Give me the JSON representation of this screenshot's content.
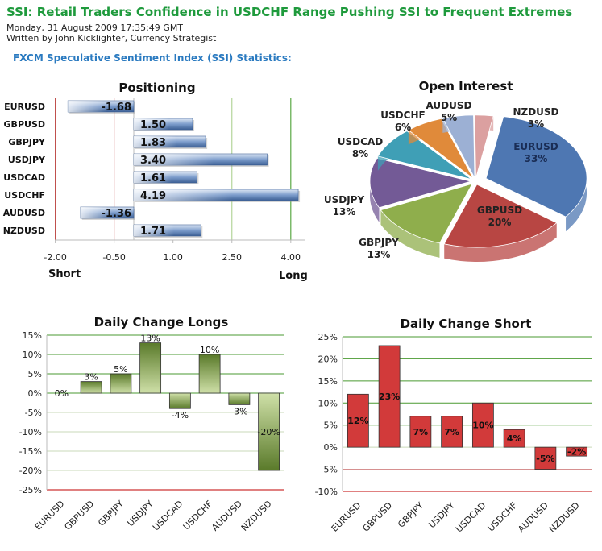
{
  "article": {
    "title": "SSI: Retail Traders Confidence in USDCHF Range Pushing SSI to Frequent Extremes",
    "date": "Monday, 31 August 2009 17:35:49 GMT",
    "author": "Written by John Kicklighter, Currency Strategist",
    "section": "FXCM Speculative Sentiment Index (SSI) Statistics:"
  },
  "chart_data": [
    {
      "type": "bar",
      "orientation": "horizontal",
      "title": "Positioning",
      "categories": [
        "EURUSD",
        "GBPUSD",
        "GBPJPY",
        "USDJPY",
        "USDCAD",
        "USDCHF",
        "AUDUSD",
        "NZDUSD"
      ],
      "values": [
        -1.68,
        1.5,
        1.83,
        3.4,
        1.61,
        4.19,
        -1.36,
        1.71
      ],
      "value_labels": [
        "-1.68",
        "1.50",
        "1.83",
        "3.40",
        "1.61",
        "4.19",
        "-1.36",
        "1.71"
      ],
      "xticks": [
        "-2.00",
        "-0.50",
        "1.00",
        "2.50",
        "4.00"
      ],
      "xlim": [
        -2.0,
        4.3
      ],
      "xlabel_left": "Short",
      "xlabel_right": "Long",
      "bar_color": "#4f74a8"
    },
    {
      "type": "pie",
      "title": "Open Interest",
      "categories": [
        "EURUSD",
        "GBPUSD",
        "GBPJPY",
        "USDJPY",
        "USDCAD",
        "USDCHF",
        "AUDUSD",
        "NZDUSD"
      ],
      "values": [
        33,
        20,
        13,
        13,
        8,
        6,
        5,
        3
      ],
      "value_labels": [
        "33%",
        "20%",
        "13%",
        "13%",
        "8%",
        "6%",
        "5%",
        "3%"
      ],
      "colors": [
        "#4e77b2",
        "#b84643",
        "#8fae4c",
        "#735a96",
        "#3f9fb6",
        "#e08a3a",
        "#9cb0d4",
        "#dba0a0"
      ]
    },
    {
      "type": "bar",
      "title": "Daily Change Longs",
      "categories": [
        "EURUSD",
        "GBPUSD",
        "GBPJPY",
        "USDJPY",
        "USDCAD",
        "USDCHF",
        "AUDUSD",
        "NZDUSD"
      ],
      "values": [
        0,
        3,
        5,
        13,
        -4,
        10,
        -3,
        -20
      ],
      "value_labels": [
        "0%",
        "3%",
        "5%",
        "13%",
        "-4%",
        "10%",
        "-3%",
        "-20%"
      ],
      "yticks": [
        "15%",
        "10%",
        "5%",
        "0%",
        "-5%",
        "-10%",
        "-15%",
        "-20%",
        "-25%"
      ],
      "ylim": [
        -25,
        15
      ],
      "bar_color": "#6f8f3a"
    },
    {
      "type": "bar",
      "title": "Daily Change Short",
      "categories": [
        "EURUSD",
        "GBPUSD",
        "GBPJPY",
        "USDJPY",
        "USDCAD",
        "USDCHF",
        "AUDUSD",
        "NZDUSD"
      ],
      "values": [
        12,
        23,
        7,
        7,
        10,
        4,
        -5,
        -2
      ],
      "value_labels": [
        "12%",
        "23%",
        "7%",
        "7%",
        "10%",
        "4%",
        "-5%",
        "-2%"
      ],
      "yticks": [
        "25%",
        "20%",
        "15%",
        "10%",
        "5%",
        "0%",
        "-5%",
        "-10%"
      ],
      "ylim": [
        -10,
        25
      ],
      "bar_color": "#d23a3a"
    }
  ]
}
